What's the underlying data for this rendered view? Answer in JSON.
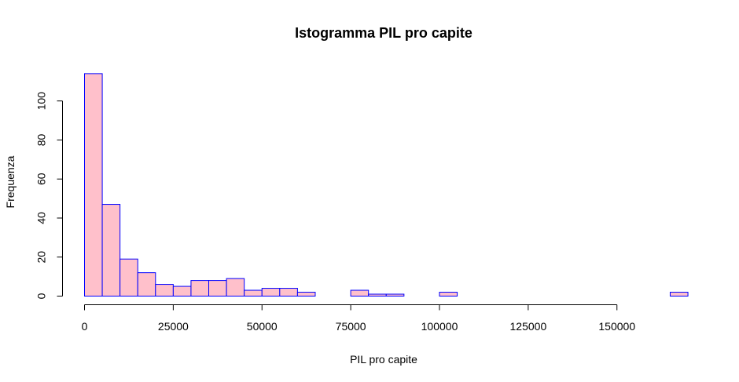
{
  "chart_data": {
    "type": "bar",
    "title": "Istogramma PIL pro capite",
    "xlabel": "PIL pro capite",
    "ylabel": "Frequenza",
    "bin_width": 5000,
    "bins": [
      [
        0,
        114
      ],
      [
        5000,
        47
      ],
      [
        10000,
        19
      ],
      [
        15000,
        12
      ],
      [
        20000,
        6
      ],
      [
        25000,
        5
      ],
      [
        30000,
        8
      ],
      [
        35000,
        8
      ],
      [
        40000,
        9
      ],
      [
        45000,
        3
      ],
      [
        50000,
        4
      ],
      [
        55000,
        4
      ],
      [
        60000,
        2
      ],
      [
        65000,
        0
      ],
      [
        70000,
        0
      ],
      [
        75000,
        3
      ],
      [
        80000,
        1
      ],
      [
        85000,
        1
      ],
      [
        90000,
        0
      ],
      [
        95000,
        0
      ],
      [
        100000,
        2
      ],
      [
        105000,
        0
      ],
      [
        110000,
        0
      ],
      [
        115000,
        0
      ],
      [
        120000,
        0
      ],
      [
        125000,
        0
      ],
      [
        130000,
        0
      ],
      [
        135000,
        0
      ],
      [
        140000,
        0
      ],
      [
        145000,
        0
      ],
      [
        150000,
        0
      ],
      [
        155000,
        0
      ],
      [
        160000,
        0
      ],
      [
        165000,
        2
      ]
    ],
    "xlim": [
      0,
      170000
    ],
    "ylim": [
      0,
      114
    ],
    "x_ticks": [
      0,
      25000,
      50000,
      75000,
      100000,
      125000,
      150000
    ],
    "y_ticks": [
      0,
      20,
      40,
      60,
      80,
      100
    ],
    "bar_fill": "#ffc0cb",
    "bar_border": "#0000ff",
    "grid": false,
    "legend": "none"
  }
}
